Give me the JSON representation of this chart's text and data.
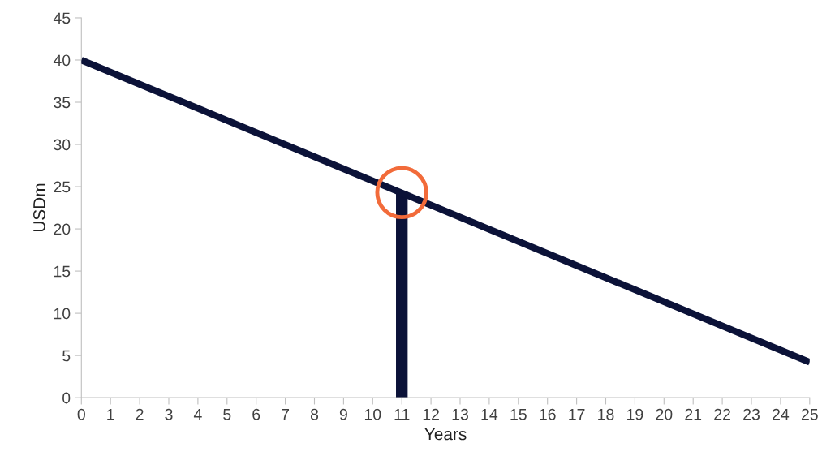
{
  "chart_data": {
    "type": "line",
    "xlabel": "Years",
    "ylabel": "USDm",
    "series": [
      {
        "color": "#0b1238",
        "x": [
          0,
          25
        ],
        "values": [
          40,
          4.2
        ]
      },
      {
        "type": "bar",
        "color": "#0b1238",
        "x": [
          11
        ],
        "values": [
          24.4
        ]
      },
      {
        "type": "scatter",
        "color": "#f26b3a",
        "marker": "circle",
        "x": [
          11
        ],
        "values": [
          24.3
        ]
      }
    ],
    "xlim": [
      0,
      25
    ],
    "xticks": [
      0,
      1,
      2,
      3,
      4,
      5,
      6,
      7,
      8,
      9,
      10,
      11,
      12,
      13,
      14,
      15,
      16,
      17,
      18,
      19,
      20,
      21,
      22,
      23,
      24,
      25
    ],
    "ylim": [
      0,
      45
    ],
    "yticks": [
      0,
      5,
      10,
      15,
      20,
      25,
      30,
      35,
      40,
      45
    ],
    "grid": false,
    "legend": false
  }
}
